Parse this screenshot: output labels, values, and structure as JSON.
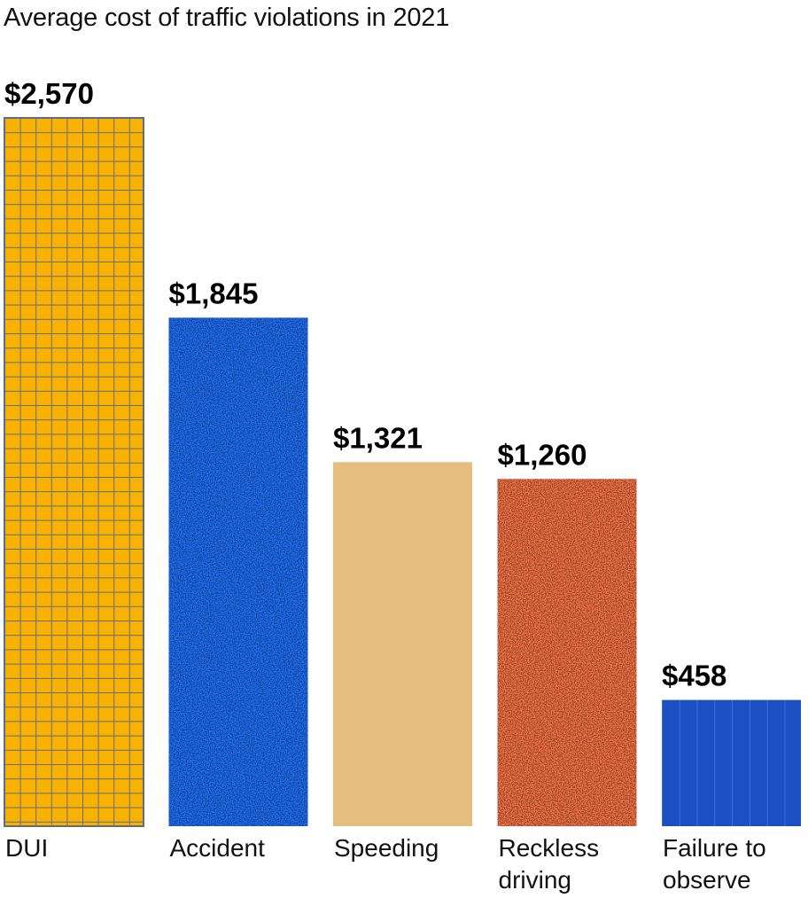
{
  "chart_data": {
    "type": "bar",
    "title": "Average cost of traffic violations in 2021",
    "categories": [
      "DUI",
      "Accident",
      "Speeding",
      "Reckless driving",
      "Failure to observe"
    ],
    "category_lines": [
      [
        "DUI"
      ],
      [
        "Accident"
      ],
      [
        "Speeding"
      ],
      [
        "Reckless",
        "driving"
      ],
      [
        "Failure to",
        "observe"
      ]
    ],
    "values": [
      2570,
      1845,
      1321,
      1260,
      458
    ],
    "value_labels": [
      "$2,570",
      "$1,845",
      "$1,321",
      "$1,260",
      "$458"
    ],
    "colors": [
      "#f9b200",
      "#1f6ff5",
      "#e5bd7f",
      "#f57347",
      "#1c4fc2"
    ],
    "patterns": [
      "grid",
      "speckle",
      "none",
      "speckle",
      "stripes"
    ],
    "ylim": [
      0,
      2570
    ],
    "xlabel": "",
    "ylabel": "",
    "grid": false,
    "legend": "none"
  }
}
